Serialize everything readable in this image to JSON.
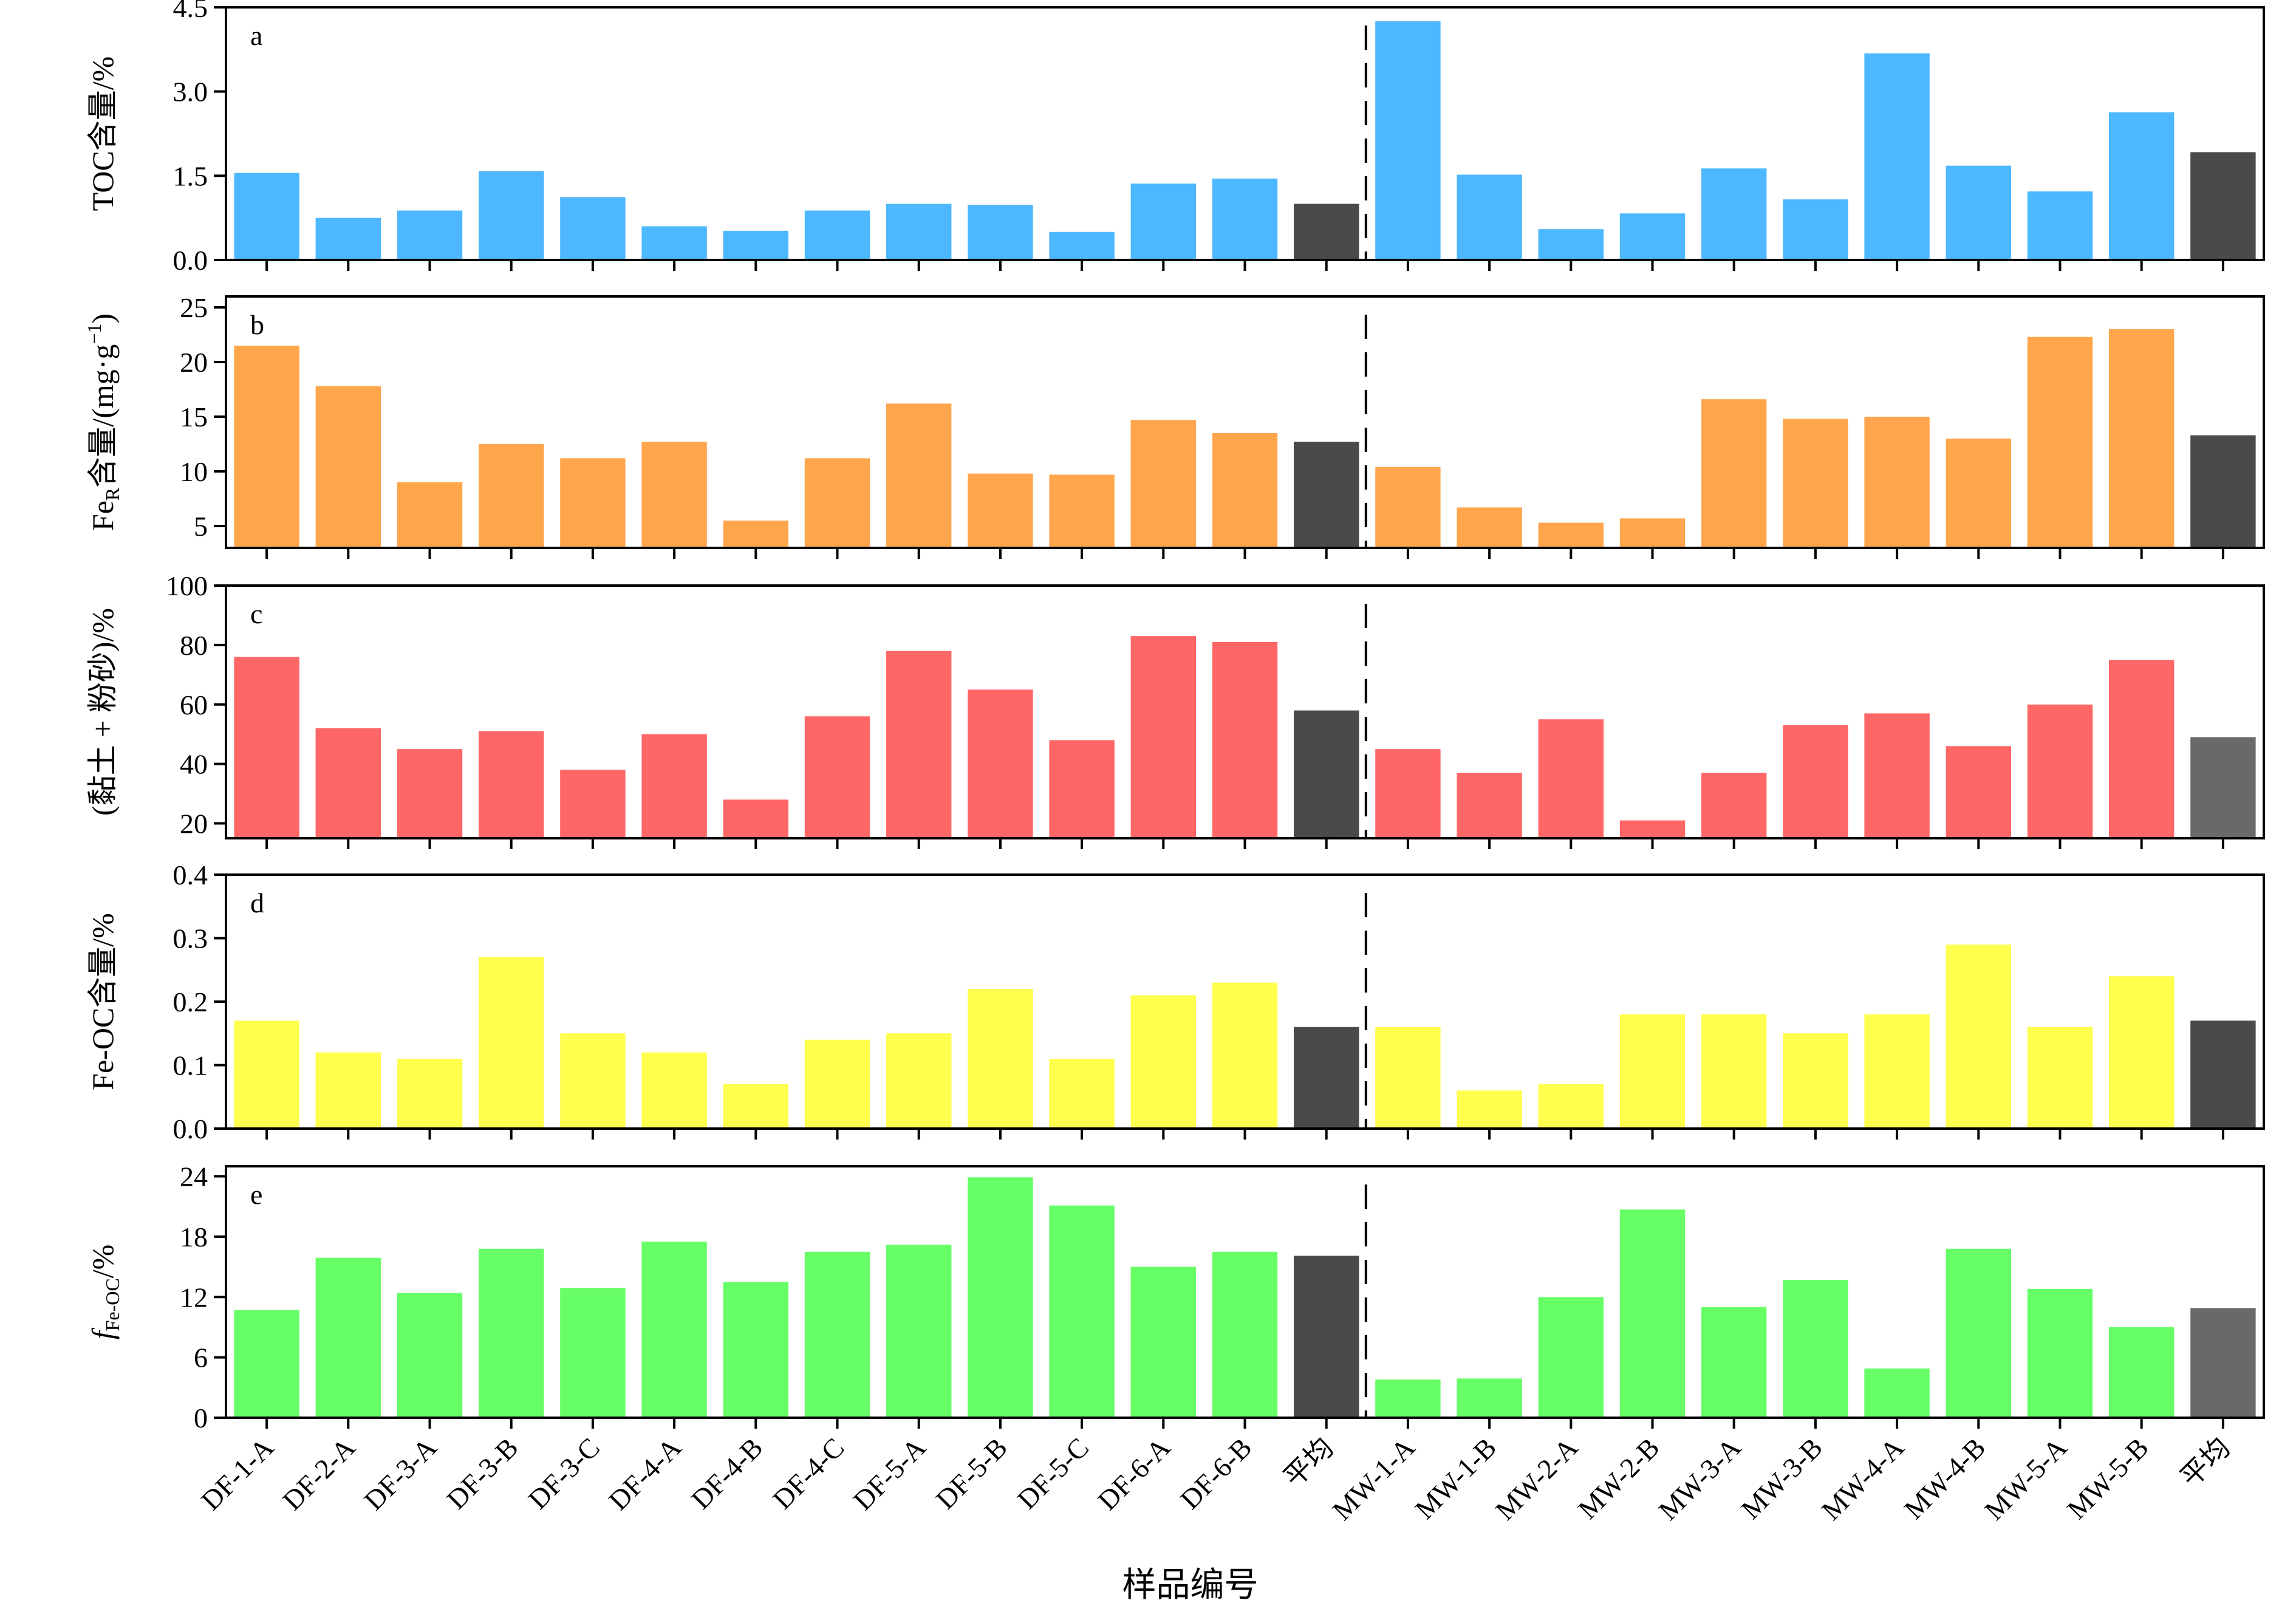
{
  "categories": [
    "DF-1-A",
    "DF-2-A",
    "DF-3-A",
    "DF-3-B",
    "DF-3-C",
    "DF-4-A",
    "DF-4-B",
    "DF-4-C",
    "DF-5-A",
    "DF-5-B",
    "DF-5-C",
    "DF-6-A",
    "DF-6-B",
    "平均",
    "MW-1-A",
    "MW-1-B",
    "MW-2-A",
    "MW-2-B",
    "MW-3-A",
    "MW-3-B",
    "MW-4-A",
    "MW-4-B",
    "MW-5-A",
    "MW-5-B",
    "平均"
  ],
  "xlabel": "样品编号",
  "colors": {
    "avg_dark": "#4a4a4a",
    "avg_mid": "#696969",
    "axis": "#000000"
  },
  "chart_data": [
    {
      "type": "bar",
      "panel": "a",
      "ylabel_main": "TOC含量/%",
      "ylim": [
        0,
        4.5
      ],
      "yticks": [
        0,
        1.5,
        3,
        4.5
      ],
      "tick_decimals": 1,
      "color": "#4db8ff",
      "values": [
        1.55,
        0.75,
        0.88,
        1.58,
        1.12,
        0.6,
        0.52,
        0.88,
        1.0,
        0.98,
        0.5,
        1.36,
        1.45,
        1.0,
        4.25,
        1.52,
        0.55,
        0.83,
        1.63,
        1.08,
        3.68,
        1.68,
        1.22,
        2.63,
        1.92
      ],
      "avg_colors": [
        "#4a4a4a",
        "#4a4a4a"
      ]
    },
    {
      "type": "bar",
      "panel": "b",
      "ylabel_main": "Fe",
      "ylabel_sub": "R",
      "ylabel_rest": "含量/(mg·g",
      "ylabel_sup": "−1",
      "ylabel_end": ")",
      "ylim": [
        3,
        26
      ],
      "yticks": [
        5,
        10,
        15,
        20,
        25
      ],
      "tick_decimals": 0,
      "color": "#ffa64d",
      "values": [
        21.5,
        17.8,
        9.0,
        12.5,
        11.2,
        12.7,
        5.5,
        11.2,
        16.2,
        9.8,
        9.7,
        14.7,
        13.5,
        12.7,
        10.4,
        6.7,
        5.3,
        5.7,
        16.6,
        14.8,
        15.0,
        13.0,
        22.3,
        23.0,
        13.3
      ],
      "avg_colors": [
        "#4a4a4a",
        "#4a4a4a"
      ]
    },
    {
      "type": "bar",
      "panel": "c",
      "ylabel_main": "(黏土 + 粉砂)/%",
      "ylim": [
        15,
        100
      ],
      "yticks": [
        20,
        40,
        60,
        80,
        100
      ],
      "tick_decimals": 0,
      "color": "#ff6666",
      "values": [
        76,
        52,
        45,
        51,
        38,
        50,
        28,
        56,
        78,
        65,
        48,
        83,
        81,
        58,
        45,
        37,
        55,
        21,
        37,
        53,
        57,
        46,
        60,
        75,
        49
      ],
      "avg_colors": [
        "#4a4a4a",
        "#696969"
      ]
    },
    {
      "type": "bar",
      "panel": "d",
      "ylabel_main": "Fe-OC含量/%",
      "ylim": [
        0,
        0.4
      ],
      "yticks": [
        0,
        0.1,
        0.2,
        0.3,
        0.4
      ],
      "tick_decimals": 1,
      "color": "#ffff4d",
      "values": [
        0.17,
        0.12,
        0.11,
        0.27,
        0.15,
        0.12,
        0.07,
        0.14,
        0.15,
        0.22,
        0.11,
        0.21,
        0.23,
        0.16,
        0.16,
        0.06,
        0.07,
        0.18,
        0.18,
        0.15,
        0.18,
        0.29,
        0.16,
        0.24,
        0.17
      ],
      "avg_colors": [
        "#4a4a4a",
        "#4a4a4a"
      ]
    },
    {
      "type": "bar",
      "panel": "e",
      "ylabel_main": "f",
      "ylabel_sub": "Fe-OC",
      "ylabel_rest": "/%",
      "ylim": [
        0,
        25
      ],
      "yticks": [
        0,
        6,
        12,
        18,
        24
      ],
      "tick_decimals": 0,
      "color": "#66ff66",
      "values": [
        10.7,
        15.9,
        12.4,
        16.8,
        12.9,
        17.5,
        13.5,
        16.5,
        17.2,
        23.9,
        21.1,
        15.0,
        16.5,
        16.1,
        3.8,
        3.9,
        12.0,
        20.7,
        11.0,
        13.7,
        4.9,
        16.8,
        12.8,
        9.0,
        10.9
      ],
      "avg_colors": [
        "#4a4a4a",
        "#696969"
      ]
    }
  ]
}
